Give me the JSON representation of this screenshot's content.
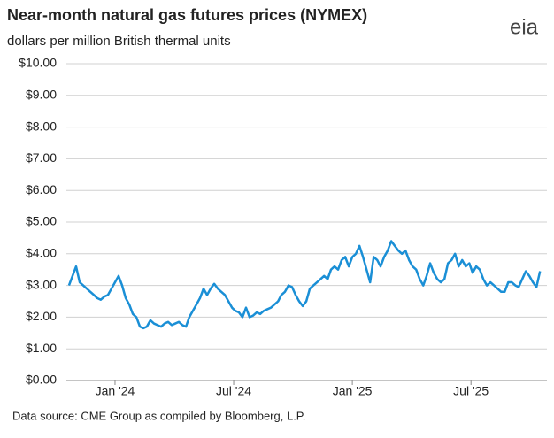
{
  "chart_data": {
    "type": "line",
    "title": "Near-month natural gas futures prices (NYMEX)",
    "subtitle": "dollars per million British thermal units",
    "logo": "eia",
    "source": "Data source: CME Group as compiled by Bloomberg, L.P.",
    "grid": true,
    "xlim": [
      2023.795,
      2025.82
    ],
    "xticks": [
      {
        "value": 2024,
        "label": "Jan '24"
      },
      {
        "value": 2024.5,
        "label": "Jul '24"
      },
      {
        "value": 2025,
        "label": "Jan '25"
      },
      {
        "value": 2025.5,
        "label": "Jul '25"
      }
    ],
    "ylim": [
      0,
      10
    ],
    "yticks": [
      {
        "value": 0,
        "label": "$0.00"
      },
      {
        "value": 1,
        "label": "$1.00"
      },
      {
        "value": 2,
        "label": "$2.00"
      },
      {
        "value": 3,
        "label": "$3.00"
      },
      {
        "value": 4,
        "label": "$4.00"
      },
      {
        "value": 5,
        "label": "$5.00"
      },
      {
        "value": 6,
        "label": "$6.00"
      },
      {
        "value": 7,
        "label": "$7.00"
      },
      {
        "value": 8,
        "label": "$8.00"
      },
      {
        "value": 9,
        "label": "$9.00"
      },
      {
        "value": 10,
        "label": "$10.00"
      }
    ],
    "x": [
      2023.806,
      2023.821,
      2023.836,
      2023.851,
      2023.866,
      2023.881,
      2023.896,
      2023.911,
      2023.925,
      2023.94,
      2023.955,
      2023.97,
      2023.985,
      2024.0,
      2024.015,
      2024.03,
      2024.045,
      2024.06,
      2024.075,
      2024.09,
      2024.105,
      2024.119,
      2024.134,
      2024.149,
      2024.164,
      2024.179,
      2024.194,
      2024.209,
      2024.224,
      2024.239,
      2024.254,
      2024.269,
      2024.284,
      2024.299,
      2024.313,
      2024.328,
      2024.343,
      2024.358,
      2024.373,
      2024.388,
      2024.403,
      2024.418,
      2024.433,
      2024.448,
      2024.463,
      2024.478,
      2024.493,
      2024.507,
      2024.522,
      2024.537,
      2024.552,
      2024.567,
      2024.582,
      2024.597,
      2024.612,
      2024.627,
      2024.642,
      2024.657,
      2024.672,
      2024.687,
      2024.701,
      2024.716,
      2024.731,
      2024.746,
      2024.761,
      2024.776,
      2024.791,
      2024.806,
      2024.821,
      2024.836,
      2024.851,
      2024.866,
      2024.881,
      2024.896,
      2024.91,
      2024.925,
      2024.94,
      2024.955,
      2024.97,
      2024.985,
      2025.0,
      2025.015,
      2025.03,
      2025.045,
      2025.06,
      2025.075,
      2025.09,
      2025.105,
      2025.119,
      2025.134,
      2025.149,
      2025.164,
      2025.179,
      2025.194,
      2025.209,
      2025.224,
      2025.239,
      2025.254,
      2025.269,
      2025.284,
      2025.299,
      2025.313,
      2025.328,
      2025.343,
      2025.358,
      2025.373,
      2025.388,
      2025.403,
      2025.418,
      2025.433,
      2025.448,
      2025.463,
      2025.478,
      2025.493,
      2025.507,
      2025.522,
      2025.537,
      2025.552,
      2025.567,
      2025.582,
      2025.597,
      2025.612,
      2025.627,
      2025.642,
      2025.657,
      2025.672,
      2025.687,
      2025.701,
      2025.716,
      2025.731,
      2025.746,
      2025.761,
      2025.776,
      2025.791
    ],
    "series": [
      {
        "color": "#1a8fd6",
        "values": [
          3.0,
          3.3,
          3.6,
          3.1,
          3.0,
          2.9,
          2.8,
          2.7,
          2.6,
          2.55,
          2.65,
          2.7,
          2.9,
          3.1,
          3.3,
          3.0,
          2.6,
          2.4,
          2.1,
          2.0,
          1.7,
          1.65,
          1.7,
          1.9,
          1.8,
          1.75,
          1.7,
          1.8,
          1.85,
          1.75,
          1.8,
          1.85,
          1.75,
          1.7,
          2.0,
          2.2,
          2.4,
          2.6,
          2.9,
          2.7,
          2.9,
          3.05,
          2.9,
          2.8,
          2.7,
          2.5,
          2.3,
          2.2,
          2.15,
          2.0,
          2.3,
          2.0,
          2.05,
          2.15,
          2.1,
          2.2,
          2.25,
          2.3,
          2.4,
          2.5,
          2.7,
          2.8,
          3.0,
          2.95,
          2.7,
          2.5,
          2.35,
          2.5,
          2.9,
          3.0,
          3.1,
          3.2,
          3.3,
          3.2,
          3.5,
          3.6,
          3.5,
          3.8,
          3.9,
          3.6,
          3.9,
          4.0,
          4.25,
          3.9,
          3.5,
          3.1,
          3.9,
          3.8,
          3.6,
          3.9,
          4.1,
          4.4,
          4.25,
          4.1,
          4.0,
          4.1,
          3.8,
          3.6,
          3.5,
          3.2,
          3.0,
          3.3,
          3.7,
          3.4,
          3.2,
          3.1,
          3.2,
          3.7,
          3.8,
          4.0,
          3.6,
          3.8,
          3.6,
          3.7,
          3.4,
          3.6,
          3.5,
          3.2,
          3.0,
          3.1,
          3.0,
          2.9,
          2.8,
          2.8,
          3.1,
          3.1,
          3.0,
          2.95,
          3.2,
          3.45,
          3.3,
          3.1,
          2.95,
          3.45
        ]
      }
    ]
  }
}
